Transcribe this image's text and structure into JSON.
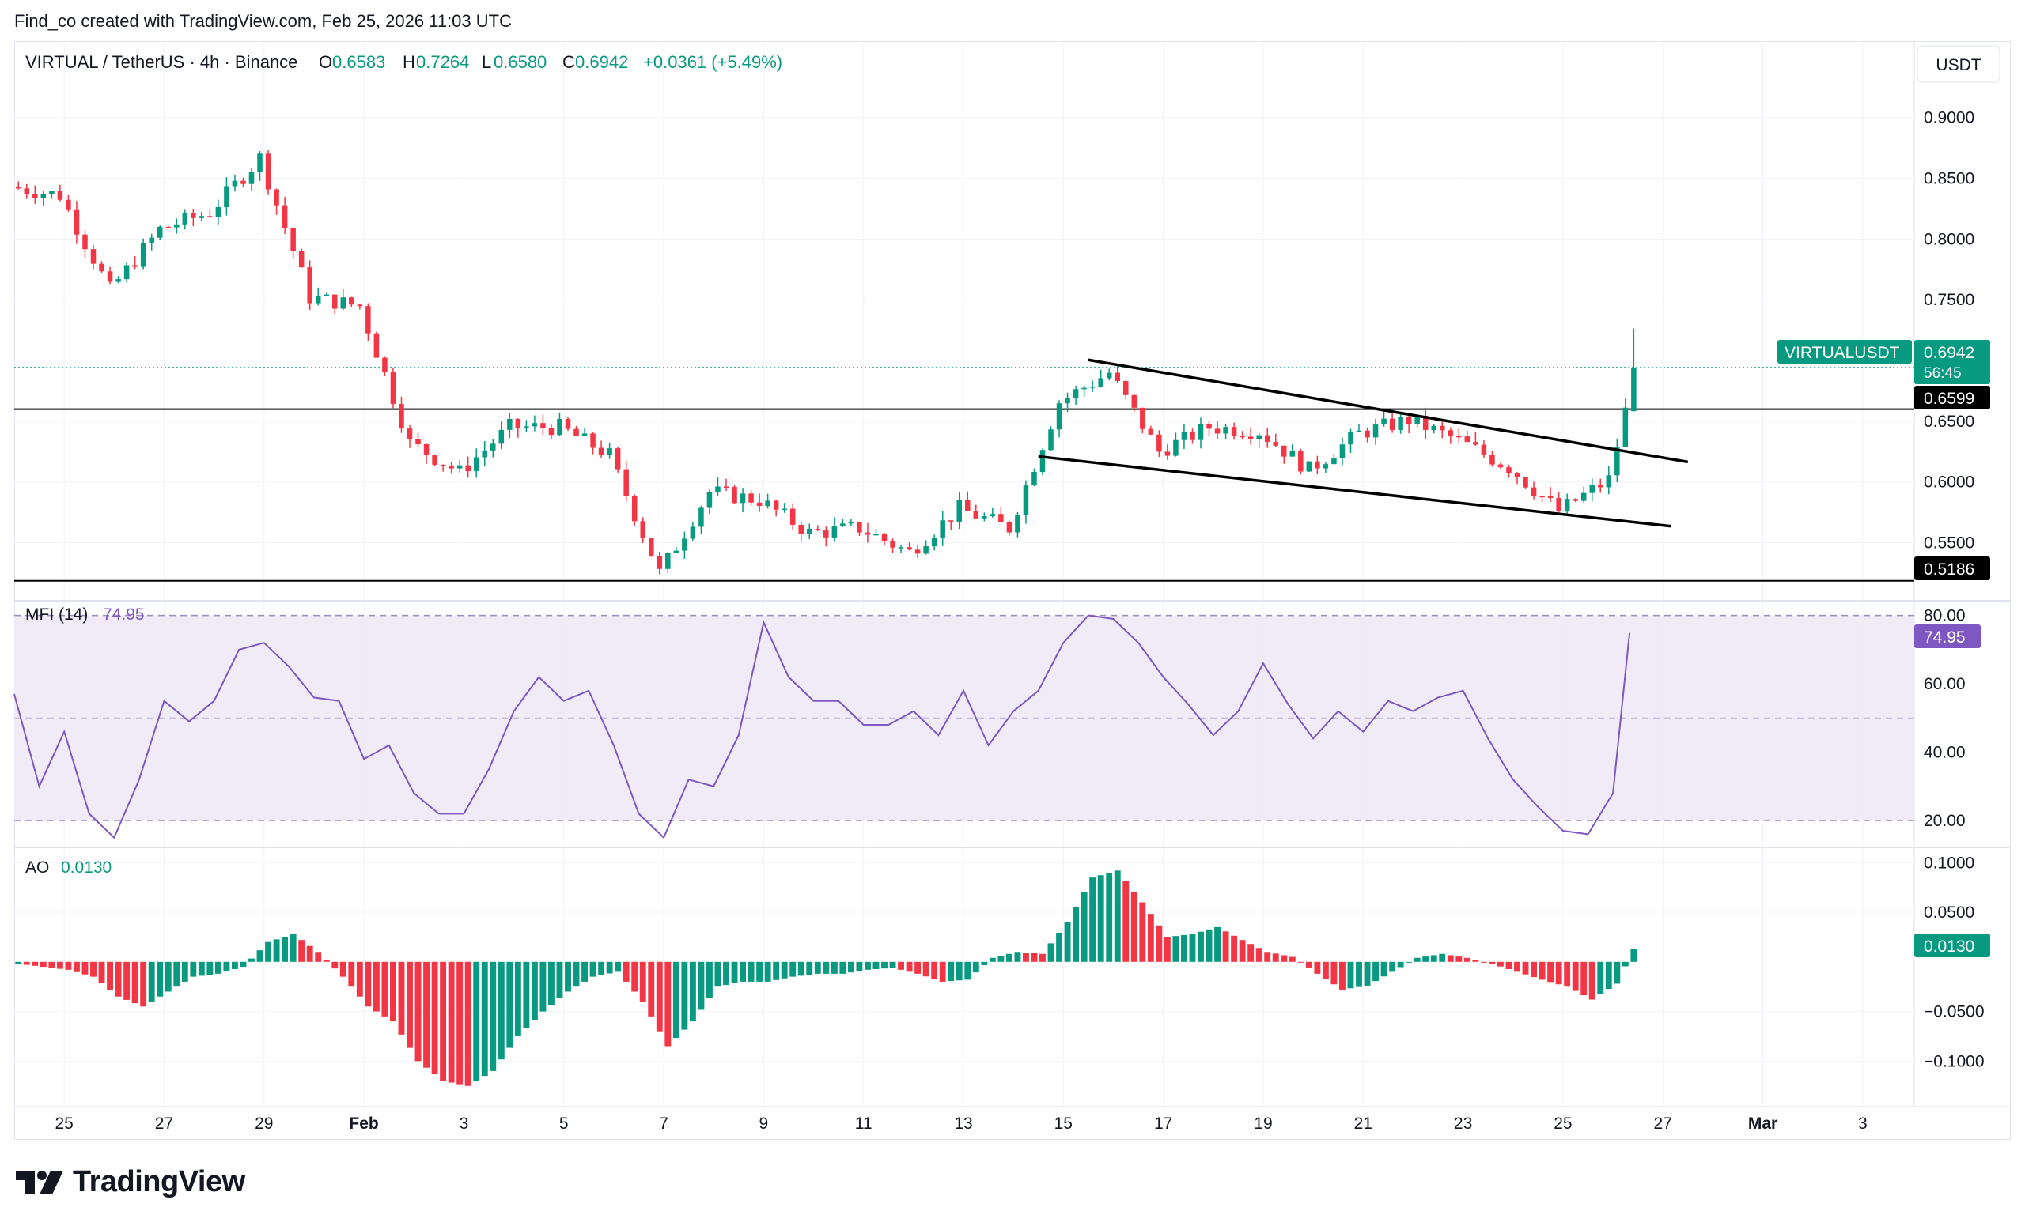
{
  "header": {
    "attribution": "Find_co created with TradingView.com, Feb 25, 2026 11:03 UTC"
  },
  "brand": {
    "name": "TradingView",
    "logo_icon": "tradingview-logo-icon"
  },
  "legend": {
    "symbol": "VIRTUAL / TetherUS · 4h · Binance",
    "o_label": "O",
    "o_value": "0.6583",
    "h_label": "H",
    "h_value": "0.7264",
    "l_label": "L",
    "l_value": "0.6580",
    "c_label": "C",
    "c_value": "0.6942",
    "change": "+0.0361 (+5.49%)"
  },
  "currency_button": "USDT",
  "colors": {
    "up": "#089981",
    "down": "#f23645",
    "mfi": "#7e57c2",
    "mfi_band": "#ede7f6",
    "grid": "#f0f3fa",
    "line": "#000000"
  },
  "price_axis": {
    "ticks": [
      "0.9000",
      "0.8500",
      "0.8000",
      "0.7500",
      "0.6500",
      "0.6000",
      "0.5500"
    ],
    "tick_values": [
      0.9,
      0.85,
      0.8,
      0.75,
      0.65,
      0.6,
      0.55
    ]
  },
  "price_tags": {
    "symbol_tag": "VIRTUALUSDT",
    "last_price": "0.6942",
    "countdown": "56:45",
    "level_upper": "0.6599",
    "level_lower": "0.5186"
  },
  "mfi": {
    "label": "MFI (14)",
    "value": "74.95",
    "ticks": [
      "80.00",
      "60.00",
      "40.00",
      "20.00"
    ],
    "tick_values": [
      80,
      60,
      40,
      20
    ]
  },
  "ao": {
    "label": "AO",
    "value": "0.0130",
    "ticks": [
      "0.1000",
      "0.0500",
      "−0.0500",
      "−0.1000"
    ],
    "tick_values": [
      0.1,
      0.05,
      -0.05,
      -0.1
    ]
  },
  "time_axis": {
    "labels": [
      "25",
      "27",
      "29",
      "Feb",
      "3",
      "5",
      "7",
      "9",
      "11",
      "13",
      "15",
      "17",
      "19",
      "21",
      "23",
      "25",
      "27",
      "Mar",
      "3"
    ],
    "bold": [
      "Feb",
      "Mar"
    ]
  },
  "chart_data": {
    "type": "candlestick",
    "interval": "4h",
    "x_range": [
      "2026-01-24",
      "2026-03-03"
    ],
    "price_range": [
      0.51,
      0.92
    ],
    "scale": "linear",
    "grid": true,
    "anchors": [
      {
        "date": "2026-01-24",
        "price": 0.843
      },
      {
        "date": "2026-01-25",
        "price": 0.836
      },
      {
        "date": "2026-01-26",
        "price": 0.758
      },
      {
        "date": "2026-01-27",
        "price": 0.808
      },
      {
        "date": "2026-01-28",
        "price": 0.822
      },
      {
        "date": "2026-01-29",
        "price": 0.867
      },
      {
        "date": "2026-01-30",
        "price": 0.752
      },
      {
        "date": "2026-01-31",
        "price": 0.745
      },
      {
        "date": "2026-02-01",
        "price": 0.632
      },
      {
        "date": "2026-02-02",
        "price": 0.608
      },
      {
        "date": "2026-02-03",
        "price": 0.645
      },
      {
        "date": "2026-02-04",
        "price": 0.645
      },
      {
        "date": "2026-02-05",
        "price": 0.622
      },
      {
        "date": "2026-02-06",
        "price": 0.525
      },
      {
        "date": "2026-02-07",
        "price": 0.592
      },
      {
        "date": "2026-02-08",
        "price": 0.585
      },
      {
        "date": "2026-02-09",
        "price": 0.558
      },
      {
        "date": "2026-02-10",
        "price": 0.562
      },
      {
        "date": "2026-02-11",
        "price": 0.542
      },
      {
        "date": "2026-02-12",
        "price": 0.578
      },
      {
        "date": "2026-02-13",
        "price": 0.562
      },
      {
        "date": "2026-02-14",
        "price": 0.666
      },
      {
        "date": "2026-02-15",
        "price": 0.69
      },
      {
        "date": "2026-02-16",
        "price": 0.625
      },
      {
        "date": "2026-02-17",
        "price": 0.645
      },
      {
        "date": "2026-02-18",
        "price": 0.642
      },
      {
        "date": "2026-02-19",
        "price": 0.61
      },
      {
        "date": "2026-02-20",
        "price": 0.64
      },
      {
        "date": "2026-02-21",
        "price": 0.651
      },
      {
        "date": "2026-02-22",
        "price": 0.634
      },
      {
        "date": "2026-02-23",
        "price": 0.612
      },
      {
        "date": "2026-02-24",
        "price": 0.576
      },
      {
        "date": "2026-02-25",
        "price": 0.602
      },
      {
        "date": "2026-02-25T08:00",
        "price": 0.6583
      }
    ],
    "last_candle": {
      "date": "2026-02-25T08:00",
      "open": 0.6583,
      "high": 0.7264,
      "low": 0.658,
      "close": 0.6942
    },
    "horizontal_levels": [
      0.6599,
      0.5186
    ],
    "trendlines": [
      {
        "name": "upper",
        "from": {
          "date": "2026-02-14T12:00",
          "price": 0.7005
        },
        "to": {
          "date": "2026-02-26T12:00",
          "price": 0.6165
        }
      },
      {
        "name": "lower",
        "from": {
          "date": "2026-02-13T12:00",
          "price": 0.621
        },
        "to": {
          "date": "2026-02-26T04:00",
          "price": 0.5635
        }
      }
    ],
    "mfi_series": [
      {
        "date": "2026-01-24",
        "value": 57
      },
      {
        "date": "2026-01-24T12:00",
        "value": 30
      },
      {
        "date": "2026-01-25",
        "value": 46
      },
      {
        "date": "2026-01-25T12:00",
        "value": 22
      },
      {
        "date": "2026-01-26",
        "value": 15
      },
      {
        "date": "2026-01-26T12:00",
        "value": 32
      },
      {
        "date": "2026-01-27",
        "value": 55
      },
      {
        "date": "2026-01-27T12:00",
        "value": 49
      },
      {
        "date": "2026-01-28",
        "value": 55
      },
      {
        "date": "2026-01-28T12:00",
        "value": 70
      },
      {
        "date": "2026-01-29",
        "value": 72
      },
      {
        "date": "2026-01-29T12:00",
        "value": 65
      },
      {
        "date": "2026-01-30",
        "value": 56
      },
      {
        "date": "2026-01-30T12:00",
        "value": 55
      },
      {
        "date": "2026-01-31",
        "value": 38
      },
      {
        "date": "2026-01-31T12:00",
        "value": 42
      },
      {
        "date": "2026-02-01",
        "value": 28
      },
      {
        "date": "2026-02-01T12:00",
        "value": 22
      },
      {
        "date": "2026-02-02",
        "value": 22
      },
      {
        "date": "2026-02-02T12:00",
        "value": 35
      },
      {
        "date": "2026-02-03",
        "value": 52
      },
      {
        "date": "2026-02-03T12:00",
        "value": 62
      },
      {
        "date": "2026-02-04",
        "value": 55
      },
      {
        "date": "2026-02-04T12:00",
        "value": 58
      },
      {
        "date": "2026-02-05",
        "value": 42
      },
      {
        "date": "2026-02-05T12:00",
        "value": 22
      },
      {
        "date": "2026-02-06",
        "value": 15
      },
      {
        "date": "2026-02-06T12:00",
        "value": 32
      },
      {
        "date": "2026-02-07",
        "value": 30
      },
      {
        "date": "2026-02-07T12:00",
        "value": 45
      },
      {
        "date": "2026-02-08",
        "value": 78
      },
      {
        "date": "2026-02-08T12:00",
        "value": 62
      },
      {
        "date": "2026-02-09",
        "value": 55
      },
      {
        "date": "2026-02-09T12:00",
        "value": 55
      },
      {
        "date": "2026-02-10",
        "value": 48
      },
      {
        "date": "2026-02-10T12:00",
        "value": 48
      },
      {
        "date": "2026-02-11",
        "value": 52
      },
      {
        "date": "2026-02-11T12:00",
        "value": 45
      },
      {
        "date": "2026-02-12",
        "value": 58
      },
      {
        "date": "2026-02-12T12:00",
        "value": 42
      },
      {
        "date": "2026-02-13",
        "value": 52
      },
      {
        "date": "2026-02-13T12:00",
        "value": 58
      },
      {
        "date": "2026-02-14",
        "value": 72
      },
      {
        "date": "2026-02-14T12:00",
        "value": 80
      },
      {
        "date": "2026-02-15",
        "value": 79
      },
      {
        "date": "2026-02-15T12:00",
        "value": 72
      },
      {
        "date": "2026-02-16",
        "value": 62
      },
      {
        "date": "2026-02-16T12:00",
        "value": 54
      },
      {
        "date": "2026-02-17",
        "value": 45
      },
      {
        "date": "2026-02-17T12:00",
        "value": 52
      },
      {
        "date": "2026-02-18",
        "value": 66
      },
      {
        "date": "2026-02-18T12:00",
        "value": 54
      },
      {
        "date": "2026-02-19",
        "value": 44
      },
      {
        "date": "2026-02-19T12:00",
        "value": 52
      },
      {
        "date": "2026-02-20",
        "value": 46
      },
      {
        "date": "2026-02-20T12:00",
        "value": 55
      },
      {
        "date": "2026-02-21",
        "value": 52
      },
      {
        "date": "2026-02-21T12:00",
        "value": 56
      },
      {
        "date": "2026-02-22",
        "value": 58
      },
      {
        "date": "2026-02-22T12:00",
        "value": 44
      },
      {
        "date": "2026-02-23",
        "value": 32
      },
      {
        "date": "2026-02-23T12:00",
        "value": 24
      },
      {
        "date": "2026-02-24",
        "value": 17
      },
      {
        "date": "2026-02-24T12:00",
        "value": 16
      },
      {
        "date": "2026-02-25",
        "value": 28
      },
      {
        "date": "2026-02-25T08:00",
        "value": 74.95
      }
    ],
    "mfi_range": [
      14,
      82
    ],
    "ao_series": [
      {
        "date": "2026-01-24",
        "value": -0.002
      },
      {
        "date": "2026-01-25",
        "value": -0.008
      },
      {
        "date": "2026-01-25T12:00",
        "value": -0.015
      },
      {
        "date": "2026-01-26",
        "value": -0.035
      },
      {
        "date": "2026-01-26T12:00",
        "value": -0.045
      },
      {
        "date": "2026-01-27",
        "value": -0.03
      },
      {
        "date": "2026-01-27T12:00",
        "value": -0.015
      },
      {
        "date": "2026-01-28",
        "value": -0.012
      },
      {
        "date": "2026-01-28T12:00",
        "value": -0.005
      },
      {
        "date": "2026-01-29",
        "value": 0.02
      },
      {
        "date": "2026-01-29T12:00",
        "value": 0.028
      },
      {
        "date": "2026-01-30",
        "value": 0.01
      },
      {
        "date": "2026-01-30T12:00",
        "value": -0.015
      },
      {
        "date": "2026-01-31",
        "value": -0.045
      },
      {
        "date": "2026-01-31T12:00",
        "value": -0.06
      },
      {
        "date": "2026-02-01",
        "value": -0.1
      },
      {
        "date": "2026-02-01T12:00",
        "value": -0.12
      },
      {
        "date": "2026-02-02",
        "value": -0.125
      },
      {
        "date": "2026-02-02T12:00",
        "value": -0.11
      },
      {
        "date": "2026-02-03",
        "value": -0.075
      },
      {
        "date": "2026-02-03T12:00",
        "value": -0.05
      },
      {
        "date": "2026-02-04",
        "value": -0.03
      },
      {
        "date": "2026-02-04T12:00",
        "value": -0.015
      },
      {
        "date": "2026-02-05",
        "value": -0.01
      },
      {
        "date": "2026-02-05T12:00",
        "value": -0.04
      },
      {
        "date": "2026-02-06",
        "value": -0.085
      },
      {
        "date": "2026-02-06T12:00",
        "value": -0.06
      },
      {
        "date": "2026-02-07",
        "value": -0.025
      },
      {
        "date": "2026-02-07T12:00",
        "value": -0.02
      },
      {
        "date": "2026-02-08",
        "value": -0.02
      },
      {
        "date": "2026-02-08T12:00",
        "value": -0.015
      },
      {
        "date": "2026-02-09",
        "value": -0.012
      },
      {
        "date": "2026-02-09T12:00",
        "value": -0.012
      },
      {
        "date": "2026-02-10",
        "value": -0.008
      },
      {
        "date": "2026-02-10T12:00",
        "value": -0.006
      },
      {
        "date": "2026-02-11",
        "value": -0.012
      },
      {
        "date": "2026-02-11T12:00",
        "value": -0.02
      },
      {
        "date": "2026-02-12",
        "value": -0.018
      },
      {
        "date": "2026-02-12T12:00",
        "value": 0.004
      },
      {
        "date": "2026-02-13",
        "value": 0.01
      },
      {
        "date": "2026-02-13T12:00",
        "value": 0.008
      },
      {
        "date": "2026-02-14",
        "value": 0.04
      },
      {
        "date": "2026-02-14T12:00",
        "value": 0.085
      },
      {
        "date": "2026-02-15",
        "value": 0.092
      },
      {
        "date": "2026-02-15T12:00",
        "value": 0.06
      },
      {
        "date": "2026-02-16",
        "value": 0.025
      },
      {
        "date": "2026-02-16T12:00",
        "value": 0.028
      },
      {
        "date": "2026-02-17",
        "value": 0.035
      },
      {
        "date": "2026-02-17T12:00",
        "value": 0.022
      },
      {
        "date": "2026-02-18",
        "value": 0.01
      },
      {
        "date": "2026-02-18T12:00",
        "value": 0.005
      },
      {
        "date": "2026-02-19",
        "value": -0.012
      },
      {
        "date": "2026-02-19T12:00",
        "value": -0.028
      },
      {
        "date": "2026-02-20",
        "value": -0.024
      },
      {
        "date": "2026-02-20T12:00",
        "value": -0.01
      },
      {
        "date": "2026-02-21",
        "value": 0.004
      },
      {
        "date": "2026-02-21T12:00",
        "value": 0.008
      },
      {
        "date": "2026-02-22",
        "value": 0.004
      },
      {
        "date": "2026-02-22T12:00",
        "value": -0.002
      },
      {
        "date": "2026-02-23",
        "value": -0.01
      },
      {
        "date": "2026-02-23T12:00",
        "value": -0.018
      },
      {
        "date": "2026-02-24",
        "value": -0.025
      },
      {
        "date": "2026-02-24T12:00",
        "value": -0.038
      },
      {
        "date": "2026-02-25",
        "value": -0.022
      },
      {
        "date": "2026-02-25T08:00",
        "value": 0.013
      }
    ],
    "ao_range": [
      -0.13,
      0.105
    ]
  }
}
